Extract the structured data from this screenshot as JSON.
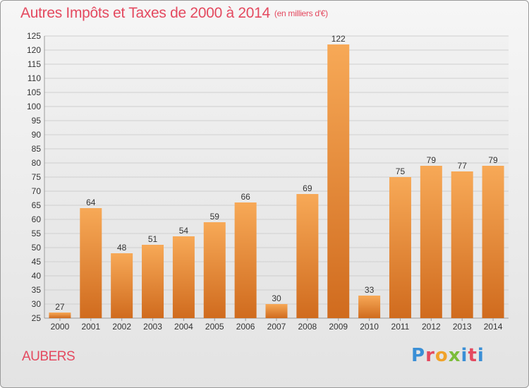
{
  "header": {
    "title": "Autres Impôts et Taxes de 2000 à 2014",
    "unit_note": "(en milliers d'€)"
  },
  "footer": {
    "commune": "AUBERS",
    "logo_text": "Proxiti"
  },
  "colors": {
    "title": "#e4495f",
    "bar_light": "#f6a452",
    "bar_dark": "#cf6a1d",
    "grid": "#cfcfcf",
    "background_top": "#f6f6f6",
    "background_bottom": "#e3e3e3"
  },
  "chart_data": {
    "type": "bar",
    "title": "Autres Impôts et Taxes de 2000 à 2014",
    "subtitle": "(en milliers d'€)",
    "xlabel": "",
    "ylabel": "",
    "categories": [
      "2000",
      "2001",
      "2002",
      "2003",
      "2004",
      "2005",
      "2006",
      "2007",
      "2008",
      "2009",
      "2010",
      "2011",
      "2012",
      "2013",
      "2014"
    ],
    "values": [
      27,
      64,
      48,
      51,
      54,
      59,
      66,
      30,
      69,
      122,
      33,
      75,
      79,
      77,
      79
    ],
    "ylim": [
      25,
      125
    ],
    "ytick_step": 5,
    "grid": true,
    "data_labels": true,
    "legend": "none"
  }
}
